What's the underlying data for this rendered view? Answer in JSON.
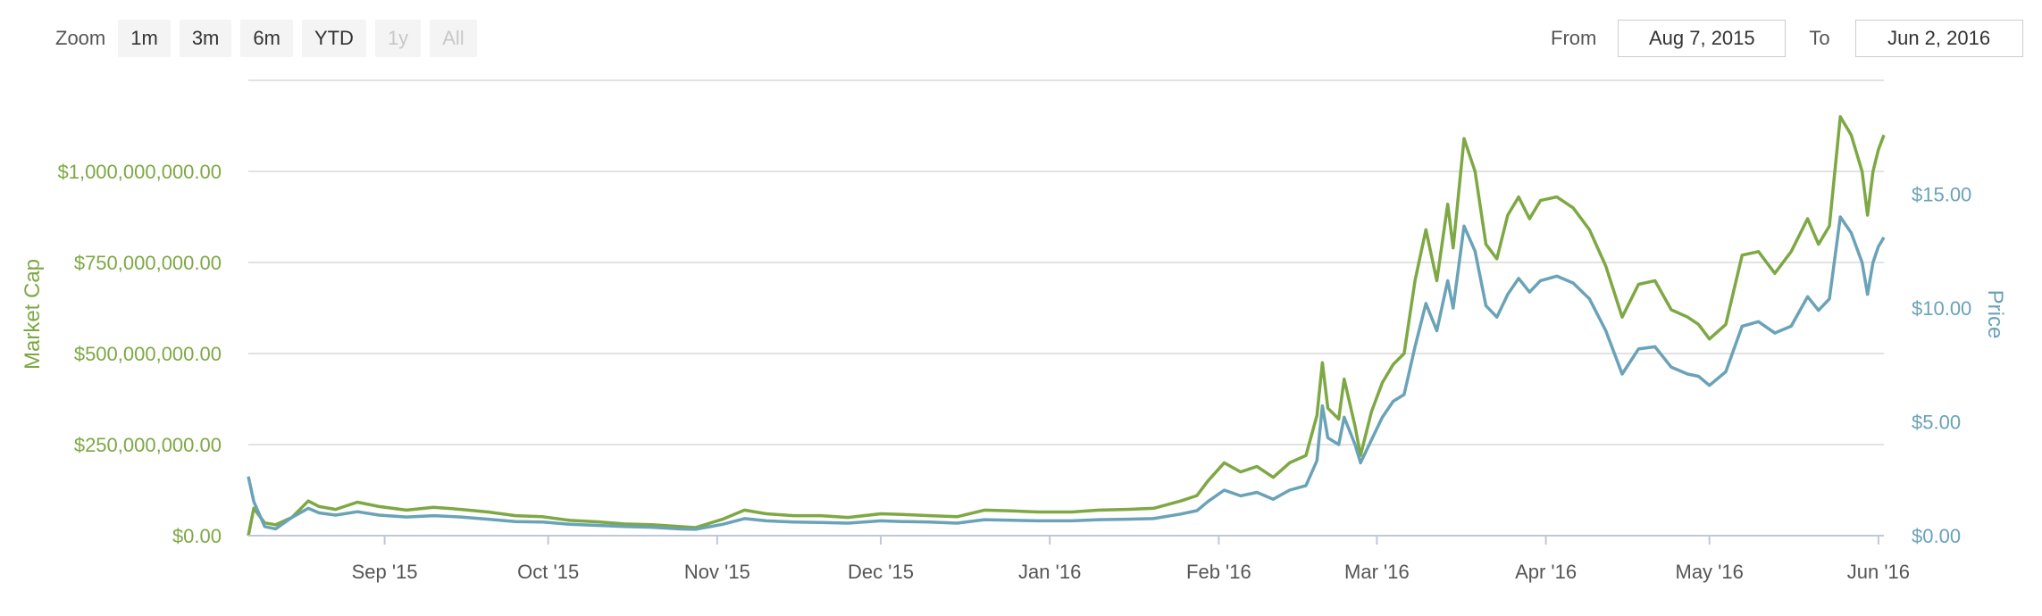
{
  "toolbar": {
    "zoom_label": "Zoom",
    "buttons": [
      {
        "label": "1m",
        "enabled": true
      },
      {
        "label": "3m",
        "enabled": true
      },
      {
        "label": "6m",
        "enabled": true
      },
      {
        "label": "YTD",
        "enabled": true
      },
      {
        "label": "1y",
        "enabled": false
      },
      {
        "label": "All",
        "enabled": false
      }
    ]
  },
  "range": {
    "from_label": "From",
    "from_value": "Aug 7, 2015",
    "to_label": "To",
    "to_value": "Jun 2, 2016"
  },
  "colors": {
    "market_cap": "#7da843",
    "price": "#6aa2b8",
    "grid": "#d8d8d8",
    "axis_text": "#555555"
  },
  "chart_data": {
    "type": "line",
    "x_range": [
      "2015-08-07",
      "2016-06-02"
    ],
    "x_ticks": [
      {
        "date": "2015-09-01",
        "label": "Sep '15"
      },
      {
        "date": "2015-10-01",
        "label": "Oct '15"
      },
      {
        "date": "2015-11-01",
        "label": "Nov '15"
      },
      {
        "date": "2015-12-01",
        "label": "Dec '15"
      },
      {
        "date": "2016-01-01",
        "label": "Jan '16"
      },
      {
        "date": "2016-02-01",
        "label": "Feb '16"
      },
      {
        "date": "2016-03-01",
        "label": "Mar '16"
      },
      {
        "date": "2016-04-01",
        "label": "Apr '16"
      },
      {
        "date": "2016-05-01",
        "label": "May '16"
      },
      {
        "date": "2016-06-01",
        "label": "Jun '16"
      }
    ],
    "y_left": {
      "label": "Market Cap",
      "range": [
        0,
        1250000000
      ],
      "ticks": [
        {
          "value": 0,
          "label": "$0.00"
        },
        {
          "value": 250000000,
          "label": "$250,000,000.00"
        },
        {
          "value": 500000000,
          "label": "$500,000,000.00"
        },
        {
          "value": 750000000,
          "label": "$750,000,000.00"
        },
        {
          "value": 1000000000,
          "label": "$1,000,000,000.00"
        }
      ]
    },
    "y_right": {
      "label": "Price",
      "range": [
        0,
        20
      ],
      "ticks": [
        {
          "value": 0,
          "label": "$0.00"
        },
        {
          "value": 5,
          "label": "$5.00"
        },
        {
          "value": 10,
          "label": "$10.00"
        },
        {
          "value": 15,
          "label": "$15.00"
        }
      ]
    },
    "series": [
      {
        "name": "Market Cap",
        "axis": "left",
        "points": [
          [
            "2015-08-07",
            0
          ],
          [
            "2015-08-08",
            75000000
          ],
          [
            "2015-08-10",
            35000000
          ],
          [
            "2015-08-12",
            30000000
          ],
          [
            "2015-08-15",
            50000000
          ],
          [
            "2015-08-18",
            95000000
          ],
          [
            "2015-08-20",
            80000000
          ],
          [
            "2015-08-23",
            72000000
          ],
          [
            "2015-08-27",
            92000000
          ],
          [
            "2015-08-31",
            80000000
          ],
          [
            "2015-09-05",
            70000000
          ],
          [
            "2015-09-10",
            78000000
          ],
          [
            "2015-09-15",
            72000000
          ],
          [
            "2015-09-20",
            65000000
          ],
          [
            "2015-09-25",
            55000000
          ],
          [
            "2015-09-30",
            52000000
          ],
          [
            "2015-10-05",
            42000000
          ],
          [
            "2015-10-10",
            38000000
          ],
          [
            "2015-10-15",
            32000000
          ],
          [
            "2015-10-20",
            30000000
          ],
          [
            "2015-10-25",
            25000000
          ],
          [
            "2015-10-28",
            22000000
          ],
          [
            "2015-11-02",
            45000000
          ],
          [
            "2015-11-06",
            70000000
          ],
          [
            "2015-11-10",
            60000000
          ],
          [
            "2015-11-15",
            55000000
          ],
          [
            "2015-11-20",
            55000000
          ],
          [
            "2015-11-25",
            50000000
          ],
          [
            "2015-12-01",
            60000000
          ],
          [
            "2015-12-05",
            58000000
          ],
          [
            "2015-12-10",
            55000000
          ],
          [
            "2015-12-15",
            52000000
          ],
          [
            "2015-12-20",
            70000000
          ],
          [
            "2015-12-25",
            68000000
          ],
          [
            "2015-12-30",
            65000000
          ],
          [
            "2016-01-05",
            65000000
          ],
          [
            "2016-01-10",
            70000000
          ],
          [
            "2016-01-15",
            72000000
          ],
          [
            "2016-01-20",
            75000000
          ],
          [
            "2016-01-25",
            95000000
          ],
          [
            "2016-01-28",
            110000000
          ],
          [
            "2016-01-30",
            150000000
          ],
          [
            "2016-02-02",
            200000000
          ],
          [
            "2016-02-05",
            175000000
          ],
          [
            "2016-02-08",
            190000000
          ],
          [
            "2016-02-11",
            160000000
          ],
          [
            "2016-02-14",
            200000000
          ],
          [
            "2016-02-17",
            220000000
          ],
          [
            "2016-02-19",
            330000000
          ],
          [
            "2016-02-20",
            475000000
          ],
          [
            "2016-02-21",
            350000000
          ],
          [
            "2016-02-23",
            320000000
          ],
          [
            "2016-02-24",
            430000000
          ],
          [
            "2016-02-26",
            300000000
          ],
          [
            "2016-02-27",
            220000000
          ],
          [
            "2016-02-29",
            340000000
          ],
          [
            "2016-03-02",
            420000000
          ],
          [
            "2016-03-04",
            470000000
          ],
          [
            "2016-03-06",
            500000000
          ],
          [
            "2016-03-08",
            700000000
          ],
          [
            "2016-03-10",
            840000000
          ],
          [
            "2016-03-12",
            700000000
          ],
          [
            "2016-03-14",
            910000000
          ],
          [
            "2016-03-15",
            790000000
          ],
          [
            "2016-03-17",
            1090000000
          ],
          [
            "2016-03-19",
            1000000000
          ],
          [
            "2016-03-21",
            800000000
          ],
          [
            "2016-03-23",
            760000000
          ],
          [
            "2016-03-25",
            880000000
          ],
          [
            "2016-03-27",
            930000000
          ],
          [
            "2016-03-29",
            870000000
          ],
          [
            "2016-03-31",
            920000000
          ],
          [
            "2016-04-03",
            930000000
          ],
          [
            "2016-04-06",
            900000000
          ],
          [
            "2016-04-09",
            840000000
          ],
          [
            "2016-04-12",
            740000000
          ],
          [
            "2016-04-15",
            600000000
          ],
          [
            "2016-04-18",
            690000000
          ],
          [
            "2016-04-21",
            700000000
          ],
          [
            "2016-04-24",
            620000000
          ],
          [
            "2016-04-27",
            600000000
          ],
          [
            "2016-04-29",
            580000000
          ],
          [
            "2016-05-01",
            540000000
          ],
          [
            "2016-05-04",
            580000000
          ],
          [
            "2016-05-07",
            770000000
          ],
          [
            "2016-05-10",
            780000000
          ],
          [
            "2016-05-13",
            720000000
          ],
          [
            "2016-05-16",
            780000000
          ],
          [
            "2016-05-19",
            870000000
          ],
          [
            "2016-05-21",
            800000000
          ],
          [
            "2016-05-23",
            850000000
          ],
          [
            "2016-05-25",
            1150000000
          ],
          [
            "2016-05-27",
            1100000000
          ],
          [
            "2016-05-29",
            1000000000
          ],
          [
            "2016-05-30",
            880000000
          ],
          [
            "2016-05-31",
            1000000000
          ],
          [
            "2016-06-01",
            1060000000
          ],
          [
            "2016-06-02",
            1100000000
          ]
        ]
      },
      {
        "name": "Price",
        "axis": "right",
        "points": [
          [
            "2015-08-07",
            2.6
          ],
          [
            "2015-08-08",
            1.5
          ],
          [
            "2015-08-10",
            0.4
          ],
          [
            "2015-08-12",
            0.3
          ],
          [
            "2015-08-15",
            0.8
          ],
          [
            "2015-08-18",
            1.2
          ],
          [
            "2015-08-20",
            1.0
          ],
          [
            "2015-08-23",
            0.9
          ],
          [
            "2015-08-27",
            1.05
          ],
          [
            "2015-08-31",
            0.9
          ],
          [
            "2015-09-05",
            0.82
          ],
          [
            "2015-09-10",
            0.88
          ],
          [
            "2015-09-15",
            0.82
          ],
          [
            "2015-09-20",
            0.72
          ],
          [
            "2015-09-25",
            0.62
          ],
          [
            "2015-09-30",
            0.6
          ],
          [
            "2015-10-05",
            0.5
          ],
          [
            "2015-10-10",
            0.45
          ],
          [
            "2015-10-15",
            0.4
          ],
          [
            "2015-10-20",
            0.37
          ],
          [
            "2015-10-25",
            0.3
          ],
          [
            "2015-10-28",
            0.28
          ],
          [
            "2015-11-02",
            0.5
          ],
          [
            "2015-11-06",
            0.75
          ],
          [
            "2015-11-10",
            0.65
          ],
          [
            "2015-11-15",
            0.6
          ],
          [
            "2015-11-20",
            0.58
          ],
          [
            "2015-11-25",
            0.55
          ],
          [
            "2015-12-01",
            0.65
          ],
          [
            "2015-12-05",
            0.62
          ],
          [
            "2015-12-10",
            0.6
          ],
          [
            "2015-12-15",
            0.55
          ],
          [
            "2015-12-20",
            0.7
          ],
          [
            "2015-12-25",
            0.68
          ],
          [
            "2015-12-30",
            0.65
          ],
          [
            "2016-01-05",
            0.65
          ],
          [
            "2016-01-10",
            0.7
          ],
          [
            "2016-01-15",
            0.72
          ],
          [
            "2016-01-20",
            0.75
          ],
          [
            "2016-01-25",
            0.95
          ],
          [
            "2016-01-28",
            1.1
          ],
          [
            "2016-01-30",
            1.5
          ],
          [
            "2016-02-02",
            2.0
          ],
          [
            "2016-02-05",
            1.75
          ],
          [
            "2016-02-08",
            1.9
          ],
          [
            "2016-02-11",
            1.6
          ],
          [
            "2016-02-14",
            2.0
          ],
          [
            "2016-02-17",
            2.2
          ],
          [
            "2016-02-19",
            3.3
          ],
          [
            "2016-02-20",
            5.7
          ],
          [
            "2016-02-21",
            4.3
          ],
          [
            "2016-02-23",
            4.0
          ],
          [
            "2016-02-24",
            5.2
          ],
          [
            "2016-02-26",
            4.0
          ],
          [
            "2016-02-27",
            3.2
          ],
          [
            "2016-02-29",
            4.2
          ],
          [
            "2016-03-02",
            5.2
          ],
          [
            "2016-03-04",
            5.9
          ],
          [
            "2016-03-06",
            6.2
          ],
          [
            "2016-03-08",
            8.3
          ],
          [
            "2016-03-10",
            10.2
          ],
          [
            "2016-03-12",
            9.0
          ],
          [
            "2016-03-14",
            11.2
          ],
          [
            "2016-03-15",
            10.0
          ],
          [
            "2016-03-17",
            13.6
          ],
          [
            "2016-03-19",
            12.5
          ],
          [
            "2016-03-21",
            10.1
          ],
          [
            "2016-03-23",
            9.6
          ],
          [
            "2016-03-25",
            10.6
          ],
          [
            "2016-03-27",
            11.3
          ],
          [
            "2016-03-29",
            10.7
          ],
          [
            "2016-03-31",
            11.2
          ],
          [
            "2016-04-03",
            11.4
          ],
          [
            "2016-04-06",
            11.1
          ],
          [
            "2016-04-09",
            10.4
          ],
          [
            "2016-04-12",
            9.0
          ],
          [
            "2016-04-15",
            7.1
          ],
          [
            "2016-04-18",
            8.2
          ],
          [
            "2016-04-21",
            8.3
          ],
          [
            "2016-04-24",
            7.4
          ],
          [
            "2016-04-27",
            7.1
          ],
          [
            "2016-04-29",
            7.0
          ],
          [
            "2016-05-01",
            6.6
          ],
          [
            "2016-05-04",
            7.2
          ],
          [
            "2016-05-07",
            9.2
          ],
          [
            "2016-05-10",
            9.4
          ],
          [
            "2016-05-13",
            8.9
          ],
          [
            "2016-05-16",
            9.2
          ],
          [
            "2016-05-19",
            10.5
          ],
          [
            "2016-05-21",
            9.9
          ],
          [
            "2016-05-23",
            10.4
          ],
          [
            "2016-05-25",
            14.0
          ],
          [
            "2016-05-27",
            13.3
          ],
          [
            "2016-05-29",
            12.0
          ],
          [
            "2016-05-30",
            10.6
          ],
          [
            "2016-05-31",
            12.0
          ],
          [
            "2016-06-01",
            12.7
          ],
          [
            "2016-06-02",
            13.1
          ]
        ]
      }
    ]
  }
}
